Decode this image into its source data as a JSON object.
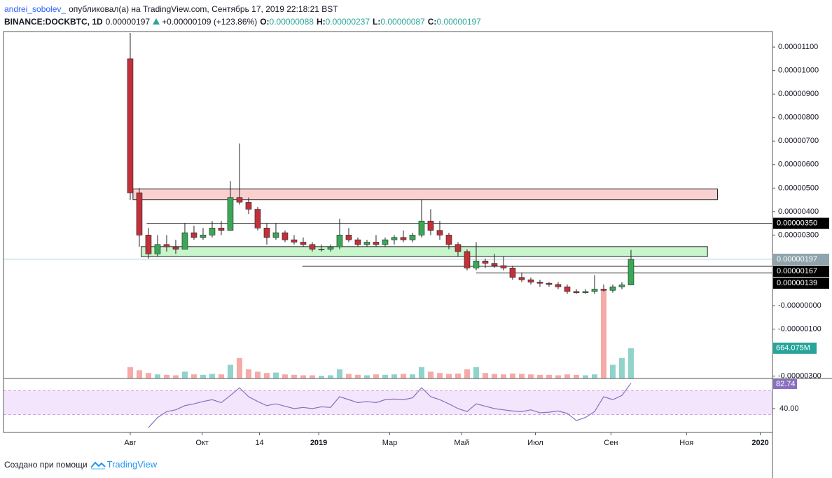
{
  "header": {
    "author": "andrei_sobolev_",
    "published": "опубликовал(а) на TradingView.com, Сентябрь 17, 2019 22:18:21 BST",
    "symbol": "BINANCE:DOCKBTC, 1D",
    "price": "0.00000197",
    "change": "+0.00000109 (+123.86%)",
    "ohlc": [
      {
        "label": "O:",
        "value": "0.00000088"
      },
      {
        "label": "H:",
        "value": "0.00000237"
      },
      {
        "label": "L:",
        "value": "0.00000087"
      },
      {
        "label": "C:",
        "value": "0.00000197"
      }
    ]
  },
  "footer": {
    "created_with": "Создано при помощи",
    "brand": "TradingView"
  },
  "chart_data": {
    "type": "candlestick",
    "up_color": "#3aa757",
    "down_color": "#c2303a",
    "xlim": [
      -13.92,
      70.54
    ],
    "xticks": [
      {
        "value": 0,
        "label": "Авг"
      },
      {
        "value": 7.9,
        "label": "Окт"
      },
      {
        "value": 14.2,
        "label": "14"
      },
      {
        "value": 20.7,
        "label": "2019"
      },
      {
        "value": 28.5,
        "label": "Мар"
      },
      {
        "value": 36.4,
        "label": "Май"
      },
      {
        "value": 44.5,
        "label": "Июл"
      },
      {
        "value": 52.8,
        "label": "Сен"
      },
      {
        "value": 61.1,
        "label": "Ноя"
      },
      {
        "value": 69.2,
        "label": "2020"
      }
    ],
    "ylim": [
      -3.1e-06,
      1.166e-05
    ],
    "yticks": [
      {
        "value": 1.1e-05,
        "label": "0.00001100"
      },
      {
        "value": 1e-05,
        "label": "0.00001000"
      },
      {
        "value": 9e-06,
        "label": "0.00000900"
      },
      {
        "value": 8e-06,
        "label": "0.00000800"
      },
      {
        "value": 7e-06,
        "label": "0.00000700"
      },
      {
        "value": 6e-06,
        "label": "0.00000600"
      },
      {
        "value": 5e-06,
        "label": "0.00000500"
      },
      {
        "value": 4e-06,
        "label": "0.00000400"
      },
      {
        "value": 3e-06,
        "label": "0.00000300"
      },
      {
        "value": 0,
        "label": "-0.00000000"
      },
      {
        "value": -1e-06,
        "label": "-0.00000100"
      },
      {
        "value": -3e-06,
        "label": "-0.00000300"
      }
    ],
    "open": [
      1.05e-05,
      4.8e-06,
      3e-06,
      2.2e-06,
      2.6e-06,
      2.5e-06,
      2.4e-06,
      3.1e-06,
      2.9e-06,
      3e-06,
      3.3e-06,
      3.2e-06,
      4.6e-06,
      4.4e-06,
      4.1e-06,
      3.3e-06,
      2.9e-06,
      3.1e-06,
      2.8e-06,
      2.7e-06,
      2.6e-06,
      2.4e-06,
      2.4e-06,
      2.5e-06,
      3e-06,
      2.8e-06,
      2.6e-06,
      2.7e-06,
      2.6e-06,
      2.8e-06,
      2.9e-06,
      2.8e-06,
      3e-06,
      3.6e-06,
      3.2e-06,
      3e-06,
      2.6e-06,
      2.3e-06,
      1.6e-06,
      1.9e-06,
      1.8e-06,
      1.7e-06,
      1.6e-06,
      1.2e-06,
      1.1e-06,
      1e-06,
      9.5e-07,
      9e-07,
      8e-07,
      6e-07,
      5.5e-07,
      6e-07,
      7e-07,
      6.5e-07,
      8e-07,
      8.8e-07
    ],
    "high": [
      1.16e-05,
      5e-06,
      3.3e-06,
      3e-06,
      3e-06,
      2.8e-06,
      3.5e-06,
      3.4e-06,
      3.3e-06,
      3.6e-06,
      3.6e-06,
      5.3e-06,
      6.9e-06,
      4.6e-06,
      4.2e-06,
      3.5e-06,
      3.5e-06,
      3.2e-06,
      3e-06,
      2.9e-06,
      2.7e-06,
      2.6e-06,
      2.6e-06,
      3.7e-06,
      3.3e-06,
      2.9e-06,
      2.8e-06,
      3e-06,
      2.9e-06,
      3e-06,
      3.2e-06,
      3.1e-06,
      4.5e-06,
      4.1e-06,
      3.6e-06,
      3.1e-06,
      2.7e-06,
      2.4e-06,
      2.7e-06,
      2e-06,
      2.2e-06,
      2.1e-06,
      1.7e-06,
      1.4e-06,
      1.2e-06,
      1.1e-06,
      1e-06,
      1e-06,
      9e-07,
      7e-07,
      7e-07,
      1.3e-06,
      9e-07,
      9e-07,
      1e-06,
      2.37e-06
    ],
    "low": [
      4.5e-06,
      2.5e-06,
      2e-06,
      2.1e-06,
      2.3e-06,
      2.2e-06,
      2.4e-06,
      2.8e-06,
      2.8e-06,
      2.9e-06,
      3e-06,
      3.2e-06,
      4.3e-06,
      3.9e-06,
      3.2e-06,
      2.6e-06,
      2.8e-06,
      2.7e-06,
      2.6e-06,
      2.5e-06,
      2.3e-06,
      2.3e-06,
      2.3e-06,
      2.4e-06,
      2.7e-06,
      2.5e-06,
      2.5e-06,
      2.5e-06,
      2.5e-06,
      2.6e-06,
      2.7e-06,
      2.7e-06,
      2.9e-06,
      3e-06,
      2.8e-06,
      2.4e-06,
      2.1e-06,
      1.5e-06,
      1.5e-06,
      1.6e-06,
      1.6e-06,
      1.5e-06,
      1.1e-06,
      1e-06,
      9e-07,
      8e-07,
      8e-07,
      7e-07,
      5e-07,
      5e-07,
      5e-07,
      5e-07,
      6e-07,
      5.5e-07,
      7e-07,
      8.7e-07
    ],
    "close": [
      4.8e-06,
      3e-06,
      2.2e-06,
      2.6e-06,
      2.5e-06,
      2.4e-06,
      3.1e-06,
      2.9e-06,
      3e-06,
      3.3e-06,
      3.2e-06,
      4.6e-06,
      4.4e-06,
      4.1e-06,
      3.3e-06,
      2.9e-06,
      3.1e-06,
      2.8e-06,
      2.7e-06,
      2.6e-06,
      2.4e-06,
      2.4e-06,
      2.5e-06,
      3e-06,
      2.8e-06,
      2.6e-06,
      2.7e-06,
      2.6e-06,
      2.8e-06,
      2.9e-06,
      2.8e-06,
      3e-06,
      3.6e-06,
      3.2e-06,
      3e-06,
      2.6e-06,
      2.3e-06,
      1.6e-06,
      1.9e-06,
      1.8e-06,
      1.7e-06,
      1.6e-06,
      1.2e-06,
      1.1e-06,
      1e-06,
      9.5e-07,
      9e-07,
      8e-07,
      6e-07,
      5.5e-07,
      6e-07,
      7e-07,
      6.5e-07,
      8e-07,
      8.8e-07,
      1.97e-06
    ],
    "last_price": {
      "value": 1.97e-06,
      "label": "0.00000197",
      "color": "#8fa4ad"
    },
    "zones": [
      {
        "low": 4.51e-06,
        "high": 4.96e-06,
        "from": 0.3,
        "to": 64.5,
        "color": "#f9cfd0"
      },
      {
        "low": 2.09e-06,
        "high": 2.51e-06,
        "from": 1.2,
        "to": 63.4,
        "color": "#c8f5cc"
      }
    ],
    "levels": [
      {
        "value": 3.5e-06,
        "label": "0.00000350",
        "from": 1.8
      },
      {
        "value": 1.67e-06,
        "label": "0.00000167",
        "from": 18.9
      },
      {
        "value": 1.39e-06,
        "label": "0.00000139",
        "from": 38
      }
    ],
    "volume": {
      "values": [
        250,
        180,
        120,
        90,
        80,
        70,
        150,
        90,
        80,
        100,
        90,
        300,
        450,
        200,
        150,
        120,
        130,
        90,
        80,
        70,
        70,
        60,
        70,
        200,
        100,
        80,
        70,
        90,
        80,
        90,
        100,
        90,
        250,
        150,
        120,
        100,
        110,
        200,
        250,
        120,
        100,
        90,
        110,
        100,
        90,
        80,
        80,
        70,
        90,
        80,
        70,
        90,
        1930,
        300,
        450,
        664.075
      ],
      "value_label": "664.075M",
      "lim": [
        0,
        2000
      ],
      "up_color": "#8fd3ca",
      "down_color": "#f5aaa7"
    },
    "rsi": {
      "values": [
        null,
        null,
        8,
        25,
        35,
        38,
        45,
        48,
        52,
        55,
        50,
        62,
        75,
        60,
        52,
        45,
        48,
        44,
        40,
        42,
        40,
        43,
        42,
        60,
        55,
        50,
        52,
        50,
        55,
        56,
        55,
        58,
        75,
        60,
        55,
        48,
        40,
        35,
        48,
        44,
        40,
        38,
        36,
        35,
        38,
        33,
        34,
        36,
        32,
        20,
        25,
        35,
        60,
        55,
        62,
        82.74
      ],
      "lim": [
        0,
        90.6
      ],
      "ticks": [
        {
          "value": 40,
          "label": "40.00"
        }
      ],
      "bands": [
        30,
        70
      ],
      "color": "#8a6fc0",
      "band_color": "#f3e5fb"
    }
  }
}
